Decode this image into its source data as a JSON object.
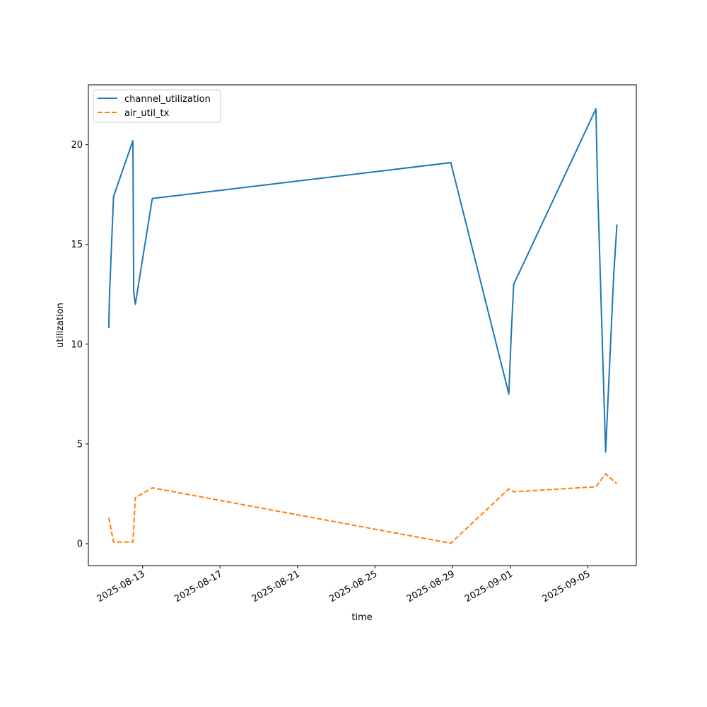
{
  "chart_data": {
    "type": "line",
    "xlabel": "time",
    "ylabel": "utilization",
    "x_is_date": true,
    "xlim": [
      "2025-08-10T04:48",
      "2025-09-07T12:00"
    ],
    "ylim": [
      -1.1,
      23.0
    ],
    "yticks": [
      0,
      5,
      10,
      15,
      20
    ],
    "xticks": [
      "2025-08-13",
      "2025-08-17",
      "2025-08-21",
      "2025-08-25",
      "2025-08-29",
      "2025-09-01",
      "2025-09-05"
    ],
    "grid": false,
    "legend_position": "top-left",
    "series": [
      {
        "name": "channel_utilization",
        "color": "#1f77b4",
        "dash": "solid",
        "points": [
          [
            "2025-08-11T06:00",
            10.8
          ],
          [
            "2025-08-11T07:00",
            12.5
          ],
          [
            "2025-08-11T12:00",
            17.4
          ],
          [
            "2025-08-12T12:00",
            20.2
          ],
          [
            "2025-08-12T13:00",
            12.6
          ],
          [
            "2025-08-12T15:00",
            12.0
          ],
          [
            "2025-08-13T12:00",
            17.3
          ],
          [
            "2025-08-28T22:00",
            19.1
          ],
          [
            "2025-08-31T22:00",
            7.5
          ],
          [
            "2025-09-01T01:00",
            10.5
          ],
          [
            "2025-09-01T04:00",
            13.0
          ],
          [
            "2025-09-05T10:00",
            21.8
          ],
          [
            "2025-09-05T12:00",
            18.0
          ],
          [
            "2025-09-05T22:00",
            4.6
          ],
          [
            "2025-09-06T08:00",
            13.5
          ],
          [
            "2025-09-06T12:00",
            16.0
          ]
        ]
      },
      {
        "name": "air_util_tx",
        "color": "#ff7f0e",
        "dash": "dashed",
        "points": [
          [
            "2025-08-11T06:00",
            1.3
          ],
          [
            "2025-08-11T12:00",
            0.08
          ],
          [
            "2025-08-12T12:00",
            0.08
          ],
          [
            "2025-08-12T15:00",
            2.3
          ],
          [
            "2025-08-13T12:00",
            2.8
          ],
          [
            "2025-08-28T22:00",
            0.02
          ],
          [
            "2025-08-31T22:00",
            2.75
          ],
          [
            "2025-09-01T04:00",
            2.6
          ],
          [
            "2025-09-05T10:00",
            2.85
          ],
          [
            "2025-09-05T22:00",
            3.5
          ],
          [
            "2025-09-06T12:00",
            3.0
          ]
        ]
      }
    ]
  }
}
